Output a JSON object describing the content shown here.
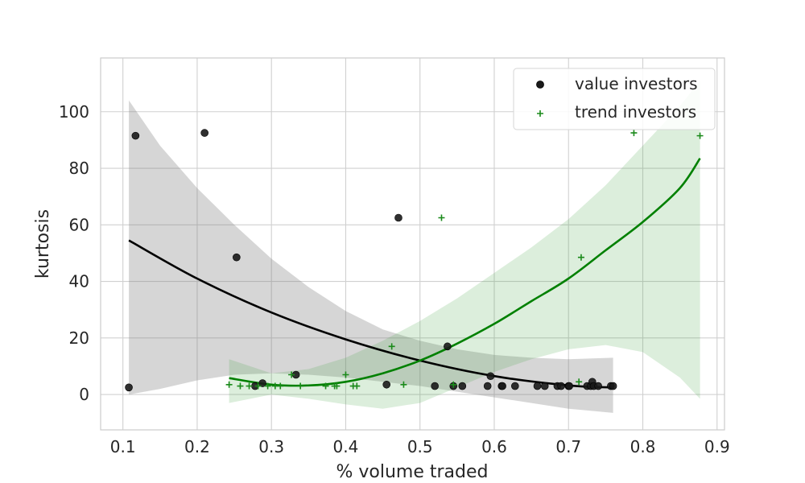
{
  "chart_data": {
    "type": "scatter",
    "title": "",
    "xlabel": "% volume traded",
    "ylabel": "kurtosis",
    "xlim": [
      0.07,
      0.91
    ],
    "ylim": [
      -12.5,
      119
    ],
    "xticks": [
      0.1,
      0.2,
      0.3,
      0.4,
      0.5,
      0.6,
      0.7,
      0.8,
      0.9
    ],
    "xtick_labels": [
      "0.1",
      "0.2",
      "0.3",
      "0.4",
      "0.5",
      "0.6",
      "0.7",
      "0.8",
      "0.9"
    ],
    "yticks": [
      0,
      20,
      40,
      60,
      80,
      100
    ],
    "ytick_labels": [
      "0",
      "20",
      "40",
      "60",
      "80",
      "100"
    ],
    "grid": true,
    "legend_position": "top-right",
    "series": [
      {
        "name": "value investors",
        "marker": "circle",
        "color": "#1a1a1a",
        "points": [
          [
            0.108,
            2.5
          ],
          [
            0.117,
            91.5
          ],
          [
            0.21,
            92.5
          ],
          [
            0.253,
            48.5
          ],
          [
            0.278,
            3
          ],
          [
            0.288,
            4
          ],
          [
            0.333,
            7
          ],
          [
            0.455,
            3.5
          ],
          [
            0.471,
            62.5
          ],
          [
            0.52,
            3
          ],
          [
            0.537,
            17
          ],
          [
            0.545,
            3
          ],
          [
            0.557,
            3
          ],
          [
            0.591,
            3
          ],
          [
            0.595,
            6.5
          ],
          [
            0.61,
            3
          ],
          [
            0.611,
            3
          ],
          [
            0.628,
            3
          ],
          [
            0.658,
            3
          ],
          [
            0.668,
            3
          ],
          [
            0.685,
            3
          ],
          [
            0.69,
            3
          ],
          [
            0.7,
            3
          ],
          [
            0.701,
            3
          ],
          [
            0.725,
            3
          ],
          [
            0.73,
            3
          ],
          [
            0.732,
            4.5
          ],
          [
            0.734,
            3
          ],
          [
            0.74,
            3
          ],
          [
            0.757,
            3
          ],
          [
            0.76,
            3
          ]
        ],
        "fit": [
          [
            0.108,
            54.5
          ],
          [
            0.2,
            41
          ],
          [
            0.3,
            29
          ],
          [
            0.4,
            19.5
          ],
          [
            0.5,
            12
          ],
          [
            0.6,
            6.5
          ],
          [
            0.7,
            3.2
          ],
          [
            0.76,
            2.5
          ]
        ],
        "band_upper": [
          [
            0.108,
            104
          ],
          [
            0.15,
            88
          ],
          [
            0.2,
            73
          ],
          [
            0.25,
            60
          ],
          [
            0.3,
            48
          ],
          [
            0.35,
            38
          ],
          [
            0.4,
            29.5
          ],
          [
            0.45,
            23
          ],
          [
            0.5,
            19
          ],
          [
            0.55,
            16
          ],
          [
            0.6,
            14
          ],
          [
            0.65,
            13
          ],
          [
            0.7,
            12.5
          ],
          [
            0.76,
            13
          ]
        ],
        "band_lower": [
          [
            0.108,
            0
          ],
          [
            0.15,
            2
          ],
          [
            0.2,
            5
          ],
          [
            0.25,
            7
          ],
          [
            0.3,
            7.5
          ],
          [
            0.35,
            7
          ],
          [
            0.4,
            6
          ],
          [
            0.45,
            4.5
          ],
          [
            0.5,
            3
          ],
          [
            0.55,
            1
          ],
          [
            0.6,
            -1
          ],
          [
            0.65,
            -3
          ],
          [
            0.7,
            -5
          ],
          [
            0.76,
            -6.5
          ]
        ]
      },
      {
        "name": "trend investors",
        "marker": "plus",
        "color": "#1a8a1a",
        "points": [
          [
            0.243,
            3.5
          ],
          [
            0.258,
            3
          ],
          [
            0.27,
            3
          ],
          [
            0.282,
            3
          ],
          [
            0.295,
            3
          ],
          [
            0.305,
            3
          ],
          [
            0.312,
            3
          ],
          [
            0.327,
            7
          ],
          [
            0.339,
            3
          ],
          [
            0.373,
            3
          ],
          [
            0.385,
            3
          ],
          [
            0.388,
            3
          ],
          [
            0.4,
            7
          ],
          [
            0.41,
            3
          ],
          [
            0.415,
            3
          ],
          [
            0.462,
            17
          ],
          [
            0.478,
            3.5
          ],
          [
            0.529,
            62.5
          ],
          [
            0.545,
            3.5
          ],
          [
            0.714,
            4.5
          ],
          [
            0.717,
            48.5
          ],
          [
            0.788,
            92.5
          ],
          [
            0.877,
            91.5
          ]
        ],
        "fit": [
          [
            0.243,
            5.8
          ],
          [
            0.3,
            3.5
          ],
          [
            0.35,
            3.2
          ],
          [
            0.4,
            4.5
          ],
          [
            0.45,
            7.5
          ],
          [
            0.5,
            12
          ],
          [
            0.55,
            18
          ],
          [
            0.6,
            25
          ],
          [
            0.65,
            33
          ],
          [
            0.7,
            41
          ],
          [
            0.75,
            51
          ],
          [
            0.8,
            61
          ],
          [
            0.85,
            73
          ],
          [
            0.877,
            83.5
          ]
        ],
        "band_upper": [
          [
            0.243,
            12.5
          ],
          [
            0.3,
            7.5
          ],
          [
            0.35,
            9
          ],
          [
            0.4,
            13
          ],
          [
            0.45,
            19
          ],
          [
            0.5,
            26
          ],
          [
            0.55,
            34
          ],
          [
            0.6,
            43
          ],
          [
            0.65,
            52
          ],
          [
            0.7,
            62
          ],
          [
            0.75,
            74
          ],
          [
            0.8,
            88
          ],
          [
            0.85,
            102
          ],
          [
            0.877,
            111
          ]
        ],
        "band_lower": [
          [
            0.243,
            -3
          ],
          [
            0.3,
            0
          ],
          [
            0.35,
            -1.5
          ],
          [
            0.4,
            -3.5
          ],
          [
            0.45,
            -5
          ],
          [
            0.5,
            -3
          ],
          [
            0.55,
            2.5
          ],
          [
            0.6,
            8
          ],
          [
            0.65,
            12.5
          ],
          [
            0.7,
            16
          ],
          [
            0.75,
            17.5
          ],
          [
            0.8,
            15
          ],
          [
            0.85,
            6
          ],
          [
            0.877,
            -1.5
          ]
        ]
      }
    ]
  }
}
